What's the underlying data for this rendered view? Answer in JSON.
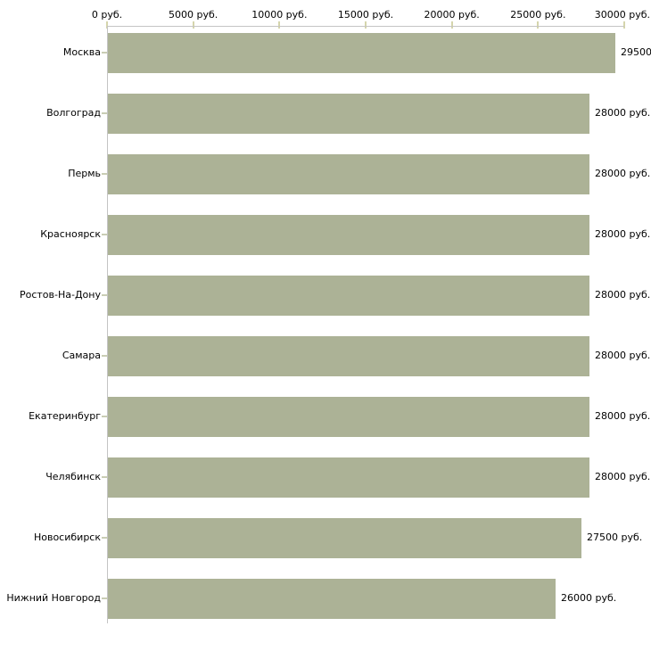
{
  "chart_data": {
    "type": "bar",
    "orientation": "horizontal",
    "title": "",
    "categories": [
      "Москва",
      "Волгоград",
      "Пермь",
      "Красноярск",
      "Ростов-На-Дону",
      "Самара",
      "Екатеринбург",
      "Челябинск",
      "Новосибирск",
      "Нижний Новгород"
    ],
    "values": [
      29500,
      28000,
      28000,
      28000,
      28000,
      28000,
      28000,
      28000,
      27500,
      26000
    ],
    "bar_value_labels": [
      "29500",
      "28000 руб.",
      "28000 руб.",
      "28000 руб.",
      "28000 руб.",
      "28000 руб.",
      "28000 руб.",
      "28000 руб.",
      "27500 руб.",
      "26000 руб."
    ],
    "x_axis": {
      "min": 0,
      "max": 30000,
      "tick_values": [
        0,
        5000,
        10000,
        15000,
        20000,
        25000,
        30000
      ],
      "tick_labels": [
        "0 руб.",
        "5000 руб.",
        "10000 руб.",
        "15000 руб.",
        "20000 руб.",
        "25000 руб.",
        "30000 руб."
      ]
    },
    "grid": false,
    "legend": false,
    "colors": {
      "bar": "#acb296",
      "axis_line": "#c4c4c4",
      "x_tick": "#d5d5ac",
      "category_tick": "#c9cdb4",
      "text": "#000000",
      "background": "#ffffff"
    }
  }
}
